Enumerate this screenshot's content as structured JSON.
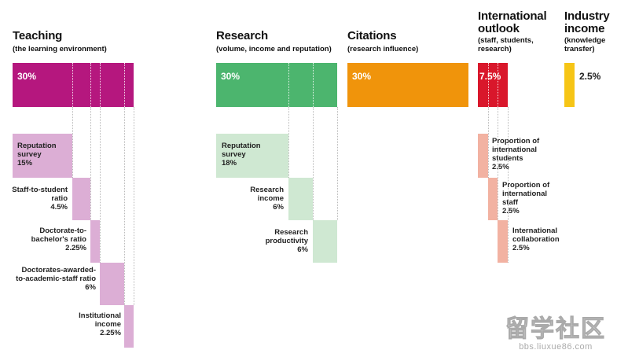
{
  "colors": {
    "teaching": "#b5177e",
    "teaching_light": "#dcaed5",
    "research": "#4cb56e",
    "research_light": "#cfe8d2",
    "citations": "#f0940b",
    "international": "#d9172b",
    "international_light": "#f2b2a2",
    "industry": "#f6c516"
  },
  "teaching": {
    "title": "Teaching",
    "subtitle": "(the learning environment)",
    "weight": "30%",
    "components": [
      {
        "label": "Reputation survey",
        "pct": "15%"
      },
      {
        "label": "Staff-to-student ratio",
        "pct": "4.5%"
      },
      {
        "label": "Doctorate-to-bachelor's ratio",
        "pct": "2.25%"
      },
      {
        "label": "Doctorates-awarded-to-academic-staff ratio",
        "pct": "6%"
      },
      {
        "label": "Institutional income",
        "pct": "2.25%"
      }
    ]
  },
  "research": {
    "title": "Research",
    "subtitle": "(volume, income and reputation)",
    "weight": "30%",
    "components": [
      {
        "label": "Reputation survey",
        "pct": "18%"
      },
      {
        "label": "Research income",
        "pct": "6%"
      },
      {
        "label": "Research productivity",
        "pct": "6%"
      }
    ]
  },
  "citations": {
    "title": "Citations",
    "subtitle": "(research influence)",
    "weight": "30%"
  },
  "international": {
    "title": "International outlook",
    "subtitle": "(staff, students, research)",
    "weight": "7.5%",
    "components": [
      {
        "label": "Proportion of international students",
        "pct": "2.5%"
      },
      {
        "label": "Proportion of international staff",
        "pct": "2.5%"
      },
      {
        "label": "International collaboration",
        "pct": "2.5%"
      }
    ]
  },
  "industry": {
    "title": "Industry income",
    "subtitle": "(knowledge transfer)",
    "weight": "2.5%"
  },
  "watermark": {
    "logo": "留学社区",
    "url": "bbs.liuxue86.com"
  }
}
